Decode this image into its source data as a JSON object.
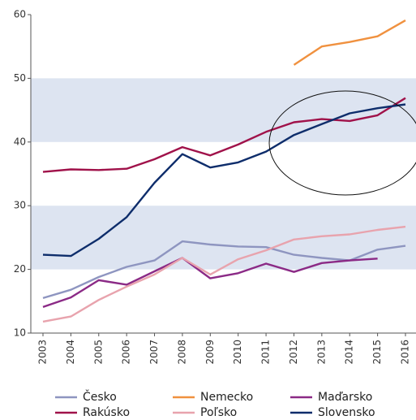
{
  "chart_data": {
    "type": "line",
    "categories": [
      "2003",
      "2004",
      "2005",
      "2006",
      "2007",
      "2008",
      "2009",
      "2010",
      "2011",
      "2012",
      "2013",
      "2014",
      "2015",
      "2016"
    ],
    "series": [
      {
        "name": "Česko",
        "color": "#8e95c0",
        "values": [
          15.5,
          16.8,
          18.8,
          20.4,
          21.4,
          24.4,
          23.9,
          23.6,
          23.5,
          22.3,
          21.8,
          21.4,
          23.1,
          23.7
        ]
      },
      {
        "name": "Nemecko",
        "color": "#f0913f",
        "values": [
          null,
          null,
          null,
          null,
          null,
          null,
          null,
          null,
          null,
          52.1,
          55.0,
          55.7,
          56.6,
          59.1
        ]
      },
      {
        "name": "Maďarsko",
        "color": "#8b2a86",
        "values": [
          14.1,
          15.6,
          18.3,
          17.6,
          19.7,
          21.8,
          18.6,
          19.4,
          20.9,
          19.6,
          21.0,
          21.4,
          21.7,
          null
        ]
      },
      {
        "name": "Rakúsko",
        "color": "#a0124a",
        "values": [
          35.3,
          35.7,
          35.6,
          35.8,
          37.3,
          39.2,
          37.9,
          39.6,
          41.6,
          43.1,
          43.6,
          43.3,
          44.2,
          46.9
        ]
      },
      {
        "name": "Poľsko",
        "color": "#e8a3ad",
        "values": [
          11.8,
          12.6,
          15.2,
          17.3,
          19.2,
          21.8,
          19.2,
          21.6,
          23.0,
          24.7,
          25.2,
          25.5,
          26.2,
          26.7
        ]
      },
      {
        "name": "Slovensko",
        "color": "#0e2d6b",
        "values": [
          22.3,
          22.1,
          24.8,
          28.2,
          33.6,
          38.1,
          36.0,
          36.8,
          38.5,
          41.1,
          42.8,
          44.5,
          45.3,
          45.9
        ]
      }
    ],
    "ylim": [
      10,
      60
    ],
    "yticks": [
      10,
      20,
      30,
      40,
      50,
      60
    ],
    "band_color": "#dde4f1"
  }
}
